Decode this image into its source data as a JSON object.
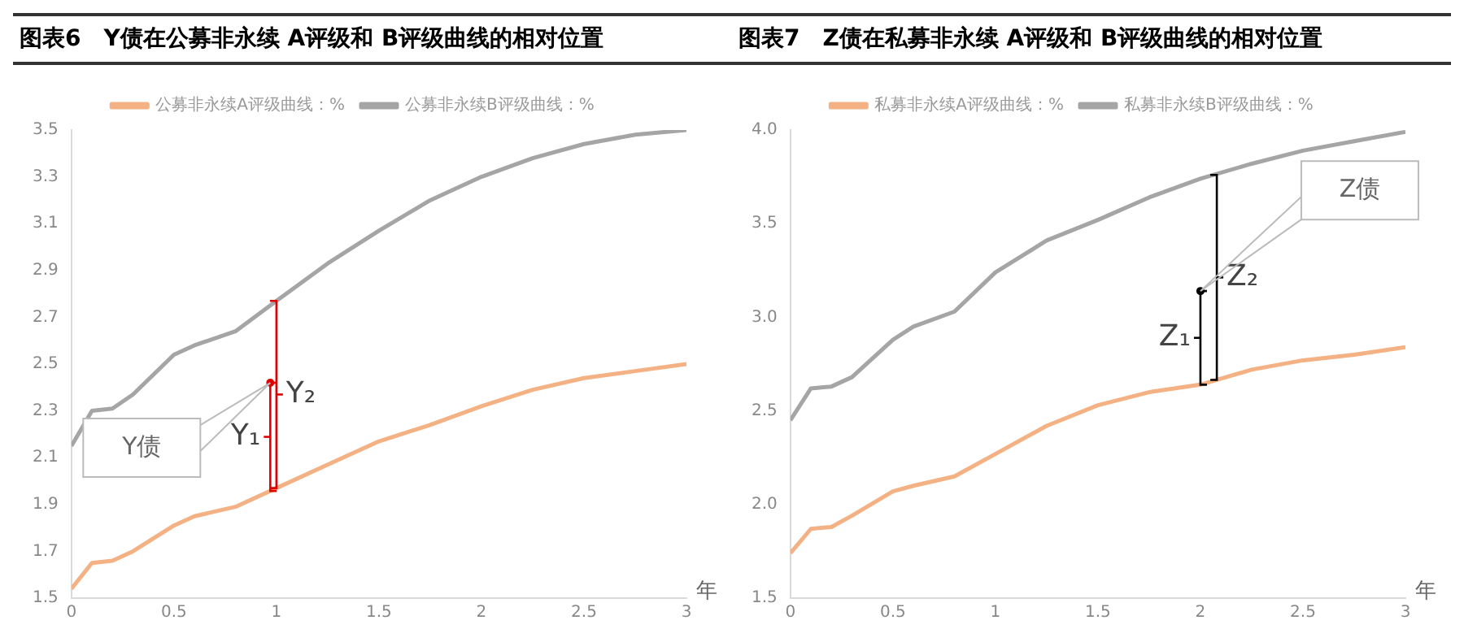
{
  "chart_data": [
    {
      "type": "line",
      "title": "图表6　Y债在公募非永续 A评级和 B评级曲线的相对位置",
      "xlabel": "年",
      "legend": "top",
      "grid": false,
      "marker": "none",
      "line_style": "solid",
      "xlim": [
        0,
        3
      ],
      "xticks": [
        0,
        0.5,
        1,
        1.5,
        2,
        2.5,
        3
      ],
      "ylim": [
        1.5,
        3.5
      ],
      "yticks": [
        1.5,
        1.7,
        1.9,
        2.1,
        2.3,
        2.5,
        2.7,
        2.9,
        3.1,
        3.3,
        3.5
      ],
      "x": [
        0,
        0.1,
        0.2,
        0.3,
        0.5,
        0.6,
        0.8,
        1,
        1.25,
        1.5,
        1.75,
        2,
        2.25,
        2.5,
        2.75,
        3
      ],
      "series": [
        {
          "name": "公募非永续A评级曲线：%",
          "color": "#f4b183",
          "values": [
            1.54,
            1.65,
            1.66,
            1.7,
            1.81,
            1.85,
            1.89,
            1.97,
            2.07,
            2.17,
            2.24,
            2.32,
            2.39,
            2.44,
            2.47,
            2.5
          ]
        },
        {
          "name": "公募非永续B评级曲线：%",
          "color": "#a5a5a5",
          "values": [
            2.15,
            2.3,
            2.31,
            2.37,
            2.54,
            2.58,
            2.64,
            2.77,
            2.93,
            3.07,
            3.2,
            3.3,
            3.38,
            3.44,
            3.48,
            3.5
          ]
        }
      ],
      "annotations": [
        "Y债",
        {
          "text": "Y₁",
          "x": 0.97,
          "y": 2.42
        },
        {
          "text": "Y₂",
          "x": 1.0,
          "y": 2.77
        }
      ]
    },
    {
      "type": "line",
      "title": "图表7　Z债在私募非永续 A评级和 B评级曲线的相对位置",
      "xlabel": "年",
      "legend": "top",
      "grid": false,
      "marker": "none",
      "line_style": "solid",
      "xlim": [
        0,
        3
      ],
      "xticks": [
        0,
        0.5,
        1,
        1.5,
        2,
        2.5,
        3
      ],
      "ylim": [
        1.5,
        4
      ],
      "yticks": [
        1.5,
        {
          "value": 2,
          "label": "2.0"
        },
        2.5,
        {
          "value": 3,
          "label": "3.0"
        },
        3.5,
        {
          "value": 4,
          "label": "4.0"
        }
      ],
      "x": [
        0,
        0.1,
        0.2,
        0.3,
        0.5,
        0.6,
        0.8,
        1,
        1.25,
        1.5,
        1.75,
        2,
        2.25,
        2.5,
        2.75,
        3
      ],
      "series": [
        {
          "name": "私募非永续A评级曲线：%",
          "color": "#f4b183",
          "values": [
            1.74,
            1.87,
            1.88,
            1.94,
            2.07,
            2.1,
            2.15,
            2.27,
            2.42,
            2.53,
            2.6,
            2.64,
            2.72,
            2.77,
            2.8,
            2.84
          ]
        },
        {
          "name": "私募非永续B评级曲线：%",
          "color": "#a5a5a5",
          "values": [
            2.45,
            2.62,
            2.63,
            2.68,
            2.88,
            2.95,
            3.03,
            3.24,
            3.41,
            3.52,
            3.64,
            3.74,
            3.82,
            3.89,
            3.94,
            3.99
          ]
        }
      ],
      "annotations": [
        "Z债",
        {
          "text": "Z₁",
          "x": 2.0,
          "y": 3.14
        },
        {
          "text": "Z₂",
          "x": 2.08,
          "y": 3.76
        }
      ]
    }
  ]
}
